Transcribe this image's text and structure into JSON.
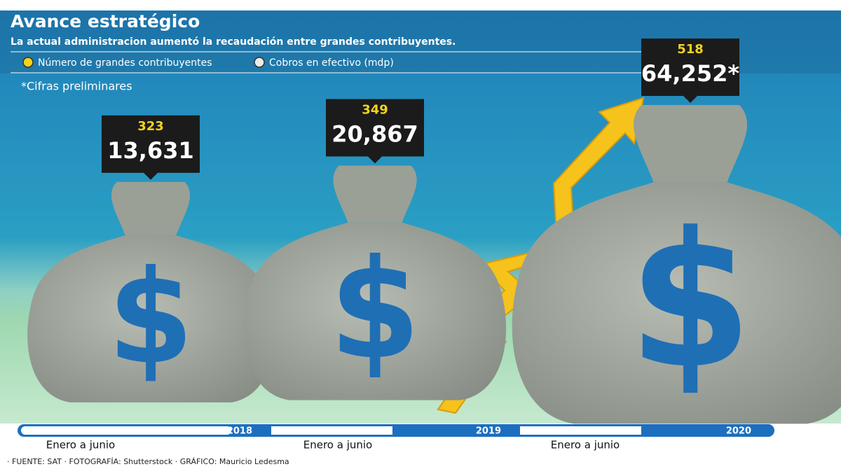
{
  "chart_data": {
    "type": "pictogram",
    "title": "Avance estratégico",
    "subtitle": "La actual administracion aumentó la recaudación entre grandes contribuyentes.",
    "note": "*Cifras preliminares",
    "categories": [
      "2018",
      "2019",
      "2020"
    ],
    "period_label": "Enero a junio",
    "series": [
      {
        "name": "Número de grandes contribuyentes",
        "color": "#f5d31a",
        "values": [
          323,
          349,
          518
        ]
      },
      {
        "name": "Cobros en efectivo (mdp)",
        "color": "#ececec",
        "values": [
          13631,
          20867,
          64252
        ],
        "value_labels": [
          "13,631",
          "20,867",
          "64,252*"
        ]
      }
    ],
    "source": "· FUENTE: SAT · FOTOGRAFÍA: Shutterstock · GRÁFICO: Mauricio Ledesma"
  }
}
